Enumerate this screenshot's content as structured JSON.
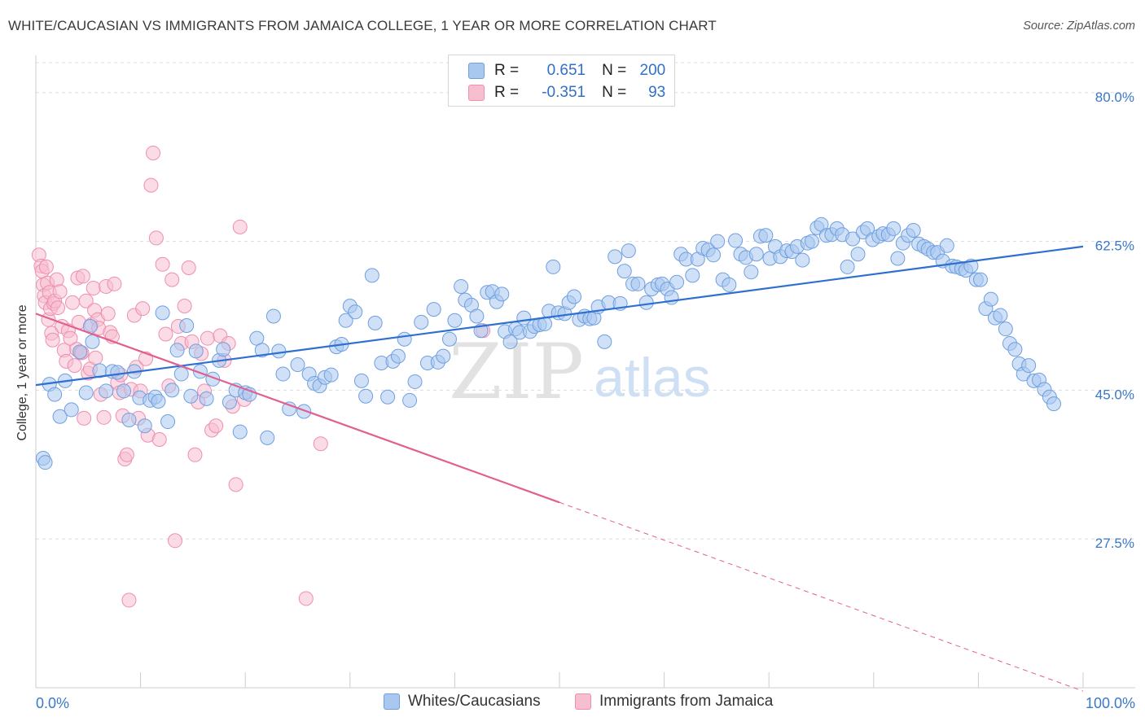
{
  "header": {
    "title": "WHITE/CAUCASIAN VS IMMIGRANTS FROM JAMAICA COLLEGE, 1 YEAR OR MORE CORRELATION CHART",
    "source": "Source: ZipAtlas.com"
  },
  "legend_top": {
    "blue": {
      "r_label": "R =",
      "r_value": "0.651",
      "n_label": "N =",
      "n_value": "200"
    },
    "pink": {
      "r_label": "R =",
      "r_value": "-0.351",
      "n_label": "N =",
      "n_value": "93"
    }
  },
  "watermark": {
    "zip": "ZIP",
    "atlas": "atlas"
  },
  "colors": {
    "blue_fill": "#a9c8f0",
    "blue_stroke": "#6f9fe0",
    "blue_line": "#2f6fd0",
    "pink_fill": "#f7bed0",
    "pink_stroke": "#ee8fae",
    "pink_line": "#e0608f",
    "tick_text": "#3a78c8",
    "grid": "#dddddd"
  },
  "chart_data": {
    "type": "scatter",
    "title": "WHITE/CAUCASIAN VS IMMIGRANTS FROM JAMAICA COLLEGE, 1 YEAR OR MORE CORRELATION CHART",
    "xlabel": "",
    "ylabel": "College, 1 year or more",
    "xlim": [
      0,
      100
    ],
    "ylim": [
      10,
      84
    ],
    "x_tick_labels": [
      "0.0%",
      "100.0%"
    ],
    "y_ticks": [
      27.5,
      45.0,
      62.5,
      80.0
    ],
    "y_tick_labels": [
      "27.5%",
      "45.0%",
      "62.5%",
      "80.0%"
    ],
    "grid": true,
    "legend_position": "bottom",
    "series": [
      {
        "name": "Whites/Caucasians",
        "color": "#a9c8f0",
        "R": 0.651,
        "N": 200,
        "trend": {
          "x": [
            0,
            100
          ],
          "y": [
            45.6,
            61.9
          ]
        },
        "points": [
          [
            0.7,
            37.0
          ],
          [
            0.9,
            36.5
          ],
          [
            1.3,
            45.7
          ],
          [
            1.8,
            44.5
          ],
          [
            2.3,
            41.9
          ],
          [
            2.8,
            46.1
          ],
          [
            3.4,
            42.7
          ],
          [
            4.2,
            49.5
          ],
          [
            4.8,
            44.7
          ],
          [
            5.2,
            52.5
          ],
          [
            5.4,
            50.7
          ],
          [
            6.1,
            47.3
          ],
          [
            6.7,
            44.9
          ],
          [
            7.3,
            47.2
          ],
          [
            7.8,
            47.1
          ],
          [
            8.4,
            44.9
          ],
          [
            8.9,
            41.5
          ],
          [
            9.4,
            47.2
          ],
          [
            9.9,
            44.1
          ],
          [
            10.4,
            40.8
          ],
          [
            10.9,
            43.8
          ],
          [
            11.4,
            44.2
          ],
          [
            11.7,
            43.7
          ],
          [
            12.1,
            54.1
          ],
          [
            12.6,
            41.3
          ],
          [
            13.0,
            45.0
          ],
          [
            13.5,
            49.7
          ],
          [
            13.9,
            46.9
          ],
          [
            14.4,
            52.6
          ],
          [
            14.8,
            44.3
          ],
          [
            15.3,
            49.6
          ],
          [
            15.7,
            47.2
          ],
          [
            16.3,
            44.0
          ],
          [
            16.9,
            46.3
          ],
          [
            17.5,
            48.5
          ],
          [
            17.9,
            49.8
          ],
          [
            18.5,
            43.6
          ],
          [
            19.1,
            45.0
          ],
          [
            19.5,
            40.1
          ],
          [
            20.0,
            44.7
          ],
          [
            20.4,
            44.5
          ],
          [
            21.1,
            51.1
          ],
          [
            21.6,
            49.7
          ],
          [
            22.1,
            39.4
          ],
          [
            22.7,
            53.7
          ],
          [
            23.2,
            49.6
          ],
          [
            23.6,
            46.9
          ],
          [
            24.2,
            42.8
          ],
          [
            25.0,
            48.0
          ],
          [
            25.6,
            42.5
          ],
          [
            26.1,
            46.9
          ],
          [
            26.6,
            45.8
          ],
          [
            27.1,
            45.5
          ],
          [
            27.6,
            46.5
          ],
          [
            28.2,
            46.8
          ],
          [
            28.7,
            50.1
          ],
          [
            29.2,
            50.4
          ],
          [
            29.6,
            53.2
          ],
          [
            30.0,
            54.9
          ],
          [
            30.5,
            54.2
          ],
          [
            31.1,
            46.1
          ],
          [
            31.5,
            44.3
          ],
          [
            32.1,
            58.5
          ],
          [
            32.4,
            52.9
          ],
          [
            33.0,
            48.2
          ],
          [
            33.6,
            44.2
          ],
          [
            34.1,
            48.4
          ],
          [
            34.6,
            49.0
          ],
          [
            35.2,
            51.0
          ],
          [
            35.7,
            43.8
          ],
          [
            36.2,
            46.0
          ],
          [
            36.8,
            53.0
          ],
          [
            37.4,
            48.2
          ],
          [
            38.0,
            54.5
          ],
          [
            38.4,
            48.3
          ],
          [
            38.9,
            49.0
          ],
          [
            39.5,
            51.0
          ],
          [
            40.0,
            53.2
          ],
          [
            40.6,
            57.2
          ],
          [
            41.0,
            55.6
          ],
          [
            41.6,
            55.0
          ],
          [
            42.1,
            53.7
          ],
          [
            42.5,
            52.0
          ],
          [
            43.1,
            56.5
          ],
          [
            43.6,
            56.6
          ],
          [
            44.0,
            55.4
          ],
          [
            44.5,
            56.3
          ],
          [
            44.8,
            51.9
          ],
          [
            45.3,
            50.7
          ],
          [
            45.8,
            52.2
          ],
          [
            46.2,
            51.8
          ],
          [
            46.6,
            53.5
          ],
          [
            47.2,
            51.9
          ],
          [
            47.6,
            52.5
          ],
          [
            48.1,
            52.7
          ],
          [
            48.6,
            52.8
          ],
          [
            49.0,
            54.3
          ],
          [
            49.4,
            59.5
          ],
          [
            49.9,
            54.1
          ],
          [
            50.5,
            54.0
          ],
          [
            50.9,
            55.3
          ],
          [
            51.4,
            56.0
          ],
          [
            51.9,
            53.3
          ],
          [
            52.4,
            53.7
          ],
          [
            52.9,
            53.4
          ],
          [
            53.3,
            53.5
          ],
          [
            53.7,
            54.8
          ],
          [
            54.3,
            50.7
          ],
          [
            54.7,
            55.3
          ],
          [
            55.3,
            60.7
          ],
          [
            55.8,
            55.2
          ],
          [
            56.2,
            59.0
          ],
          [
            56.6,
            61.4
          ],
          [
            57.0,
            57.5
          ],
          [
            57.5,
            57.5
          ],
          [
            58.3,
            55.3
          ],
          [
            58.8,
            56.9
          ],
          [
            59.4,
            57.4
          ],
          [
            59.8,
            57.5
          ],
          [
            60.3,
            56.9
          ],
          [
            60.7,
            55.9
          ],
          [
            61.2,
            57.7
          ],
          [
            61.6,
            61.0
          ],
          [
            62.1,
            60.4
          ],
          [
            62.7,
            58.5
          ],
          [
            63.2,
            60.4
          ],
          [
            63.7,
            61.7
          ],
          [
            64.2,
            61.5
          ],
          [
            64.7,
            60.9
          ],
          [
            65.1,
            62.5
          ],
          [
            65.6,
            58.0
          ],
          [
            66.2,
            57.4
          ],
          [
            66.8,
            62.6
          ],
          [
            67.3,
            61.0
          ],
          [
            67.8,
            60.6
          ],
          [
            68.3,
            58.9
          ],
          [
            68.8,
            61.0
          ],
          [
            69.2,
            63.1
          ],
          [
            69.7,
            63.2
          ],
          [
            70.1,
            60.5
          ],
          [
            70.6,
            61.9
          ],
          [
            71.1,
            60.7
          ],
          [
            71.7,
            61.4
          ],
          [
            72.2,
            61.3
          ],
          [
            72.7,
            61.9
          ],
          [
            73.2,
            60.3
          ],
          [
            73.7,
            62.3
          ],
          [
            74.1,
            62.5
          ],
          [
            74.6,
            64.1
          ],
          [
            75.0,
            64.5
          ],
          [
            75.5,
            63.2
          ],
          [
            76.0,
            63.3
          ],
          [
            76.5,
            64.0
          ],
          [
            77.0,
            63.3
          ],
          [
            77.5,
            59.5
          ],
          [
            78.0,
            62.8
          ],
          [
            78.5,
            61.0
          ],
          [
            79.0,
            63.6
          ],
          [
            79.4,
            64.0
          ],
          [
            79.9,
            62.7
          ],
          [
            80.5,
            63.1
          ],
          [
            80.9,
            63.4
          ],
          [
            81.4,
            63.3
          ],
          [
            81.9,
            64.0
          ],
          [
            82.3,
            60.5
          ],
          [
            82.8,
            62.3
          ],
          [
            83.3,
            63.2
          ],
          [
            83.8,
            63.8
          ],
          [
            84.3,
            62.2
          ],
          [
            84.8,
            61.9
          ],
          [
            85.2,
            61.6
          ],
          [
            85.7,
            61.2
          ],
          [
            86.1,
            61.2
          ],
          [
            86.6,
            60.2
          ],
          [
            87.0,
            62.0
          ],
          [
            87.5,
            59.6
          ],
          [
            87.9,
            59.5
          ],
          [
            88.4,
            59.3
          ],
          [
            88.8,
            59.1
          ],
          [
            89.3,
            59.6
          ],
          [
            89.8,
            58.0
          ],
          [
            90.2,
            58.0
          ],
          [
            90.7,
            54.6
          ],
          [
            91.2,
            55.7
          ],
          [
            91.6,
            53.5
          ],
          [
            92.1,
            53.8
          ],
          [
            92.6,
            52.2
          ],
          [
            93.0,
            50.5
          ],
          [
            93.5,
            49.8
          ],
          [
            93.9,
            48.1
          ],
          [
            94.3,
            46.9
          ],
          [
            94.8,
            47.9
          ],
          [
            95.3,
            46.1
          ],
          [
            95.8,
            46.2
          ],
          [
            96.3,
            45.1
          ],
          [
            96.8,
            44.2
          ],
          [
            97.2,
            43.4
          ]
        ]
      },
      {
        "name": "Immigrants from Jamaica",
        "color": "#f7bed0",
        "R": -0.351,
        "N": 93,
        "trend": {
          "x": [
            0,
            50
          ],
          "y": [
            54.0,
            31.8
          ]
        },
        "trend_extended": {
          "x": [
            50,
            100
          ],
          "y": [
            31.8,
            9.6
          ]
        },
        "points": [
          [
            0.3,
            60.9
          ],
          [
            0.5,
            59.6
          ],
          [
            0.6,
            59.0
          ],
          [
            0.7,
            57.4
          ],
          [
            0.8,
            56.1
          ],
          [
            0.9,
            55.3
          ],
          [
            1.0,
            59.5
          ],
          [
            1.1,
            57.6
          ],
          [
            1.2,
            53.3
          ],
          [
            1.3,
            56.5
          ],
          [
            1.4,
            54.6
          ],
          [
            1.5,
            51.7
          ],
          [
            1.6,
            50.9
          ],
          [
            1.7,
            55.2
          ],
          [
            1.8,
            55.5
          ],
          [
            2.0,
            58.0
          ],
          [
            2.1,
            54.7
          ],
          [
            2.3,
            56.6
          ],
          [
            2.5,
            52.5
          ],
          [
            2.7,
            49.7
          ],
          [
            2.9,
            48.4
          ],
          [
            3.1,
            52.0
          ],
          [
            3.3,
            51.1
          ],
          [
            3.5,
            55.3
          ],
          [
            3.7,
            47.9
          ],
          [
            3.9,
            49.8
          ],
          [
            4.0,
            58.2
          ],
          [
            4.1,
            53.0
          ],
          [
            4.3,
            49.4
          ],
          [
            4.4,
            49.4
          ],
          [
            4.5,
            58.4
          ],
          [
            4.6,
            41.7
          ],
          [
            4.8,
            55.5
          ],
          [
            5.0,
            47.0
          ],
          [
            5.2,
            47.5
          ],
          [
            5.3,
            52.7
          ],
          [
            5.5,
            57.0
          ],
          [
            5.6,
            54.4
          ],
          [
            5.7,
            48.8
          ],
          [
            5.9,
            53.3
          ],
          [
            6.0,
            52.3
          ],
          [
            6.2,
            44.5
          ],
          [
            6.5,
            41.8
          ],
          [
            6.7,
            57.2
          ],
          [
            6.9,
            54.0
          ],
          [
            7.1,
            51.8
          ],
          [
            7.3,
            51.3
          ],
          [
            7.5,
            57.5
          ],
          [
            7.8,
            45.9
          ],
          [
            8.0,
            44.7
          ],
          [
            8.1,
            46.8
          ],
          [
            8.3,
            42.0
          ],
          [
            8.5,
            36.9
          ],
          [
            8.7,
            37.4
          ],
          [
            8.9,
            20.3
          ],
          [
            9.1,
            45.1
          ],
          [
            9.4,
            53.8
          ],
          [
            9.6,
            47.7
          ],
          [
            9.8,
            41.7
          ],
          [
            10.0,
            44.9
          ],
          [
            10.2,
            54.6
          ],
          [
            10.5,
            48.7
          ],
          [
            10.7,
            39.7
          ],
          [
            11.0,
            69.1
          ],
          [
            11.2,
            72.9
          ],
          [
            11.5,
            62.9
          ],
          [
            11.8,
            39.2
          ],
          [
            12.1,
            59.8
          ],
          [
            12.4,
            51.6
          ],
          [
            12.7,
            45.5
          ],
          [
            13.0,
            58.0
          ],
          [
            13.3,
            27.3
          ],
          [
            13.6,
            52.5
          ],
          [
            13.9,
            50.5
          ],
          [
            14.2,
            54.9
          ],
          [
            14.6,
            59.4
          ],
          [
            14.9,
            50.7
          ],
          [
            15.2,
            37.4
          ],
          [
            15.5,
            43.6
          ],
          [
            15.8,
            49.3
          ],
          [
            16.1,
            44.9
          ],
          [
            16.4,
            51.1
          ],
          [
            16.8,
            40.3
          ],
          [
            17.2,
            40.8
          ],
          [
            17.6,
            51.4
          ],
          [
            18.0,
            48.5
          ],
          [
            18.4,
            50.5
          ],
          [
            18.8,
            43.1
          ],
          [
            19.1,
            33.9
          ],
          [
            19.5,
            64.2
          ],
          [
            19.9,
            43.9
          ],
          [
            25.8,
            20.5
          ],
          [
            27.2,
            38.7
          ],
          [
            42.7,
            52.0
          ]
        ]
      }
    ]
  },
  "x_axis": {
    "left_label": "0.0%",
    "right_label": "100.0%"
  },
  "y_axis": {
    "label": "College, 1 year or more"
  },
  "bottom_legend": {
    "blue_label": "Whites/Caucasians",
    "pink_label": "Immigrants from Jamaica"
  }
}
